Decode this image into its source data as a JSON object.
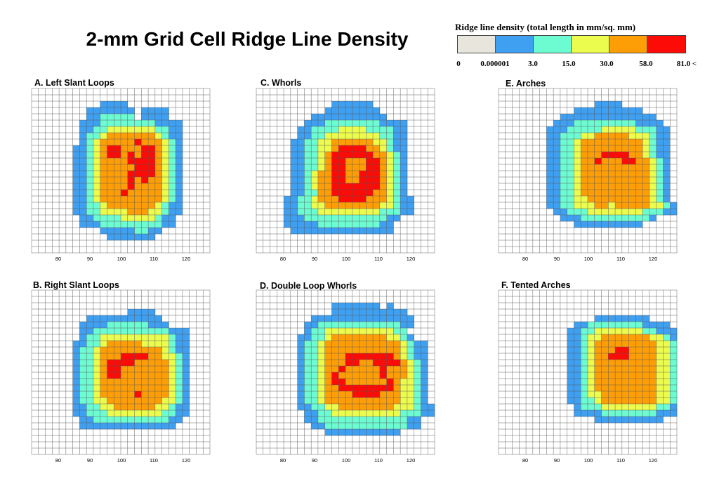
{
  "title": "2-mm Grid Cell Ridge Line Density",
  "legend": {
    "title": "Ridge line density (total length in mm/sq. mm)",
    "colors": [
      "#e8e6dc",
      "#3f9ff0",
      "#6dfcd2",
      "#ecfc4e",
      "#fd9e07",
      "#fc0b07"
    ],
    "ticks": [
      "0",
      "0.000001",
      "3.0",
      "15.0",
      "30.0",
      "58.0",
      "81.0 <"
    ]
  },
  "chart_data": [
    {
      "type": "heatmap",
      "title": "A. Left Slant Loops",
      "x_ticks": [
        "80",
        "90",
        "100",
        "110",
        "120"
      ],
      "rows": [
        "",
        "",
        "",
        "",
        "",
        "",
        "",
        "",
        "",
        "",
        "",
        "",
        "",
        "",
        "",
        "",
        "",
        "",
        "",
        "",
        "",
        "",
        "",
        "",
        "",
        ""
      ]
    },
    {
      "type": "heatmap",
      "title": "B. Right Slant Loops",
      "x_ticks": [
        "80",
        "90",
        "100",
        "110",
        "120"
      ],
      "rows": []
    },
    {
      "type": "heatmap",
      "title": "C. Whorls",
      "x_ticks": [
        "80",
        "90",
        "100",
        "110",
        "120"
      ],
      "rows": []
    },
    {
      "type": "heatmap",
      "title": "D. Double Loop Whorls",
      "x_ticks": [
        "80",
        "90",
        "100",
        "110",
        "120"
      ],
      "rows": []
    },
    {
      "type": "heatmap",
      "title": "E. Arches",
      "x_ticks": [
        "80",
        "90",
        "100",
        "110",
        "120"
      ],
      "rows": []
    },
    {
      "type": "heatmap",
      "title": "F. Tented Arches",
      "x_ticks": [
        "80",
        "90",
        "100",
        "110",
        "120"
      ],
      "rows": []
    }
  ]
}
